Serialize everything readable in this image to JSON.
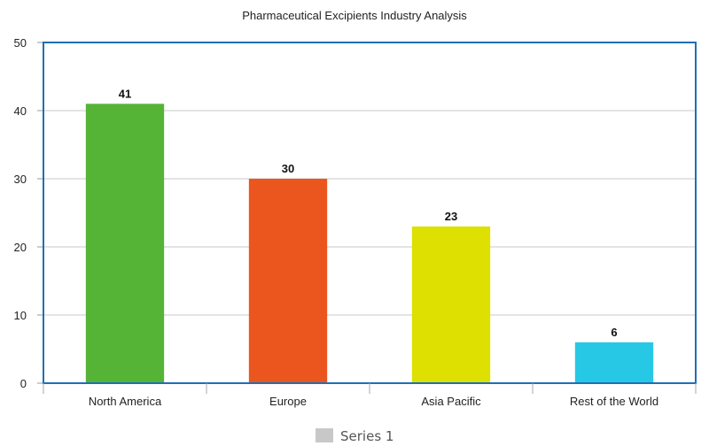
{
  "chart_data": {
    "type": "bar",
    "title": "Pharmaceutical Excipients Industry Analysis",
    "xlabel": "",
    "ylabel": "",
    "categories": [
      "North America",
      "Europe",
      "Asia Pacific",
      "Rest of the World"
    ],
    "series": [
      {
        "name": "Series 1",
        "values": [
          41,
          30,
          23,
          6
        ],
        "colors": [
          "#55b436",
          "#eb561e",
          "#dde000",
          "#26c8e6"
        ],
        "data_labels": [
          "41",
          "30",
          "23",
          "6"
        ]
      }
    ],
    "ylim": [
      0,
      50
    ],
    "yticks": [
      0,
      10,
      20,
      30,
      40,
      50
    ],
    "grid": true,
    "legend_position": "bottom",
    "legend_swatch_color": "#c8c8c8",
    "frame_color": "#1f6fb5",
    "grid_color": "#c8c8c8"
  }
}
